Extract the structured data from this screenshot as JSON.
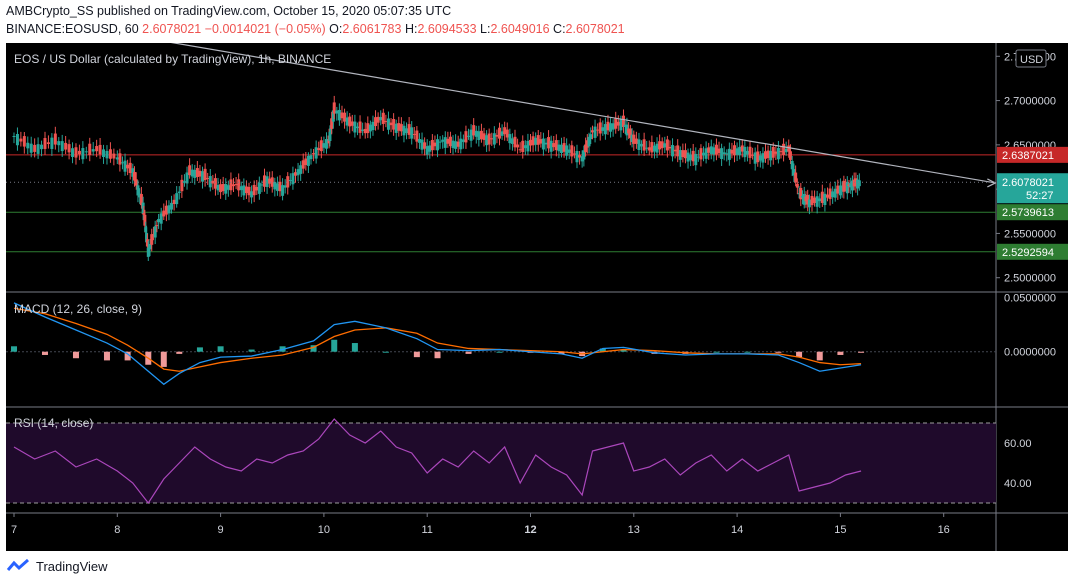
{
  "header": {
    "line1": "AMBCrypto_SS published on TradingView.com, October 15, 2020 05:07:35 UTC",
    "symbol": "BINANCE:EOSUSD, 60",
    "last": "2.6078021",
    "change": "−0.0014021 (−0.05%)",
    "o_label": "O:",
    "o": "2.6061783",
    "h_label": "H:",
    "h": "2.6094533",
    "l_label": "L:",
    "l": "2.6049016",
    "c_label": "C:",
    "c": "2.6078021"
  },
  "footer": {
    "brand": "TradingView"
  },
  "chart_data": {
    "type": "candlestick",
    "title": "EOS / US Dollar (calculated by TradingView), 1h, BINANCE",
    "currency": "USD",
    "x_ticks": [
      "7",
      "8",
      "9",
      "10",
      "11",
      "12",
      "13",
      "14",
      "15",
      "16"
    ],
    "price_axis_ticks": [
      "2.7500000",
      "2.7000000",
      "2.6500000",
      "2.6000000",
      "2.5500000",
      "2.5000000"
    ],
    "ylim": [
      2.485,
      2.765
    ],
    "horizontal_levels": [
      {
        "value": 2.6387021,
        "label": "2.6387021",
        "color": "#c62828"
      },
      {
        "value": 2.5739613,
        "label": "2.5739613",
        "color": "#2e7d32"
      },
      {
        "value": 2.5292594,
        "label": "2.5292594",
        "color": "#2e7d32"
      }
    ],
    "trendline": {
      "from": {
        "day": 8.3,
        "price": 2.77
      },
      "to": {
        "day": 16.5,
        "price": 2.607
      }
    },
    "current_price": {
      "value": 2.6078021,
      "label": "2.6078021",
      "countdown": "52:27"
    },
    "candles_close_path": [
      [
        7.0,
        2.66
      ],
      [
        7.2,
        2.645
      ],
      [
        7.4,
        2.655
      ],
      [
        7.6,
        2.64
      ],
      [
        7.8,
        2.645
      ],
      [
        8.0,
        2.635
      ],
      [
        8.15,
        2.62
      ],
      [
        8.25,
        2.58
      ],
      [
        8.3,
        2.53
      ],
      [
        8.4,
        2.565
      ],
      [
        8.55,
        2.585
      ],
      [
        8.7,
        2.62
      ],
      [
        8.85,
        2.615
      ],
      [
        9.0,
        2.6
      ],
      [
        9.15,
        2.605
      ],
      [
        9.3,
        2.595
      ],
      [
        9.45,
        2.61
      ],
      [
        9.6,
        2.6
      ],
      [
        9.75,
        2.62
      ],
      [
        9.9,
        2.64
      ],
      [
        10.05,
        2.655
      ],
      [
        10.1,
        2.69
      ],
      [
        10.25,
        2.675
      ],
      [
        10.4,
        2.665
      ],
      [
        10.55,
        2.68
      ],
      [
        10.7,
        2.67
      ],
      [
        10.85,
        2.665
      ],
      [
        11.0,
        2.645
      ],
      [
        11.15,
        2.655
      ],
      [
        11.3,
        2.65
      ],
      [
        11.45,
        2.665
      ],
      [
        11.6,
        2.655
      ],
      [
        11.75,
        2.665
      ],
      [
        11.9,
        2.645
      ],
      [
        12.05,
        2.655
      ],
      [
        12.2,
        2.65
      ],
      [
        12.35,
        2.645
      ],
      [
        12.5,
        2.635
      ],
      [
        12.6,
        2.665
      ],
      [
        12.75,
        2.67
      ],
      [
        12.9,
        2.675
      ],
      [
        13.0,
        2.655
      ],
      [
        13.15,
        2.645
      ],
      [
        13.3,
        2.65
      ],
      [
        13.45,
        2.64
      ],
      [
        13.6,
        2.635
      ],
      [
        13.75,
        2.645
      ],
      [
        13.9,
        2.64
      ],
      [
        14.05,
        2.645
      ],
      [
        14.2,
        2.635
      ],
      [
        14.35,
        2.64
      ],
      [
        14.5,
        2.645
      ],
      [
        14.6,
        2.595
      ],
      [
        14.7,
        2.585
      ],
      [
        14.85,
        2.59
      ],
      [
        15.0,
        2.6
      ],
      [
        15.1,
        2.605
      ],
      [
        15.2,
        2.608
      ]
    ],
    "macd": {
      "label": "MACD (12, 26, close, 9)",
      "axis_ticks": [
        "0.0500000",
        "0.0000000"
      ],
      "ylim": [
        -0.05,
        0.055
      ],
      "macd_line": [
        [
          7.0,
          0.045
        ],
        [
          7.3,
          0.032
        ],
        [
          7.6,
          0.02
        ],
        [
          7.9,
          0.008
        ],
        [
          8.1,
          -0.002
        ],
        [
          8.3,
          -0.018
        ],
        [
          8.45,
          -0.03
        ],
        [
          8.6,
          -0.02
        ],
        [
          8.8,
          -0.01
        ],
        [
          9.0,
          -0.005
        ],
        [
          9.3,
          -0.004
        ],
        [
          9.6,
          0.002
        ],
        [
          9.9,
          0.01
        ],
        [
          10.1,
          0.025
        ],
        [
          10.3,
          0.028
        ],
        [
          10.6,
          0.022
        ],
        [
          10.9,
          0.012
        ],
        [
          11.1,
          0.002
        ],
        [
          11.4,
          0.001
        ],
        [
          11.7,
          0.002
        ],
        [
          12.0,
          0.0
        ],
        [
          12.3,
          -0.002
        ],
        [
          12.5,
          -0.006
        ],
        [
          12.7,
          0.003
        ],
        [
          12.9,
          0.004
        ],
        [
          13.2,
          -0.001
        ],
        [
          13.5,
          -0.003
        ],
        [
          13.8,
          -0.002
        ],
        [
          14.1,
          -0.002
        ],
        [
          14.4,
          -0.003
        ],
        [
          14.6,
          -0.01
        ],
        [
          14.8,
          -0.018
        ],
        [
          15.0,
          -0.015
        ],
        [
          15.2,
          -0.012
        ]
      ],
      "signal_line": [
        [
          7.0,
          0.04
        ],
        [
          7.3,
          0.035
        ],
        [
          7.6,
          0.026
        ],
        [
          7.9,
          0.016
        ],
        [
          8.1,
          0.006
        ],
        [
          8.3,
          -0.006
        ],
        [
          8.45,
          -0.016
        ],
        [
          8.6,
          -0.018
        ],
        [
          8.8,
          -0.014
        ],
        [
          9.0,
          -0.01
        ],
        [
          9.3,
          -0.006
        ],
        [
          9.6,
          -0.003
        ],
        [
          9.9,
          0.004
        ],
        [
          10.1,
          0.014
        ],
        [
          10.3,
          0.02
        ],
        [
          10.6,
          0.022
        ],
        [
          10.9,
          0.017
        ],
        [
          11.1,
          0.008
        ],
        [
          11.4,
          0.003
        ],
        [
          11.7,
          0.002
        ],
        [
          12.0,
          0.001
        ],
        [
          12.3,
          0.0
        ],
        [
          12.5,
          -0.002
        ],
        [
          12.7,
          0.0
        ],
        [
          12.9,
          0.002
        ],
        [
          13.2,
          0.001
        ],
        [
          13.5,
          -0.001
        ],
        [
          13.8,
          -0.002
        ],
        [
          14.1,
          -0.002
        ],
        [
          14.4,
          -0.002
        ],
        [
          14.6,
          -0.005
        ],
        [
          14.8,
          -0.01
        ],
        [
          15.0,
          -0.012
        ],
        [
          15.2,
          -0.011
        ]
      ]
    },
    "rsi": {
      "label": "RSI (14, close)",
      "axis_ticks": [
        "60.00",
        "40.00"
      ],
      "ylim": [
        25,
        78
      ],
      "bands": [
        70,
        30
      ],
      "values": [
        [
          7.0,
          58
        ],
        [
          7.2,
          52
        ],
        [
          7.4,
          56
        ],
        [
          7.6,
          48
        ],
        [
          7.8,
          52
        ],
        [
          8.0,
          46
        ],
        [
          8.15,
          40
        ],
        [
          8.3,
          30
        ],
        [
          8.45,
          42
        ],
        [
          8.6,
          50
        ],
        [
          8.75,
          58
        ],
        [
          8.9,
          52
        ],
        [
          9.05,
          48
        ],
        [
          9.2,
          46
        ],
        [
          9.35,
          52
        ],
        [
          9.5,
          50
        ],
        [
          9.65,
          54
        ],
        [
          9.8,
          56
        ],
        [
          9.95,
          62
        ],
        [
          10.1,
          72
        ],
        [
          10.25,
          64
        ],
        [
          10.4,
          60
        ],
        [
          10.55,
          66
        ],
        [
          10.7,
          58
        ],
        [
          10.85,
          55
        ],
        [
          11.0,
          45
        ],
        [
          11.15,
          52
        ],
        [
          11.3,
          48
        ],
        [
          11.45,
          56
        ],
        [
          11.6,
          50
        ],
        [
          11.75,
          58
        ],
        [
          11.9,
          40
        ],
        [
          12.05,
          54
        ],
        [
          12.2,
          48
        ],
        [
          12.35,
          44
        ],
        [
          12.5,
          34
        ],
        [
          12.6,
          56
        ],
        [
          12.75,
          58
        ],
        [
          12.9,
          60
        ],
        [
          13.0,
          46
        ],
        [
          13.15,
          48
        ],
        [
          13.3,
          52
        ],
        [
          13.45,
          44
        ],
        [
          13.6,
          50
        ],
        [
          13.75,
          54
        ],
        [
          13.9,
          46
        ],
        [
          14.05,
          52
        ],
        [
          14.2,
          46
        ],
        [
          14.35,
          50
        ],
        [
          14.5,
          54
        ],
        [
          14.6,
          36
        ],
        [
          14.75,
          38
        ],
        [
          14.9,
          40
        ],
        [
          15.05,
          44
        ],
        [
          15.2,
          46
        ]
      ]
    }
  }
}
